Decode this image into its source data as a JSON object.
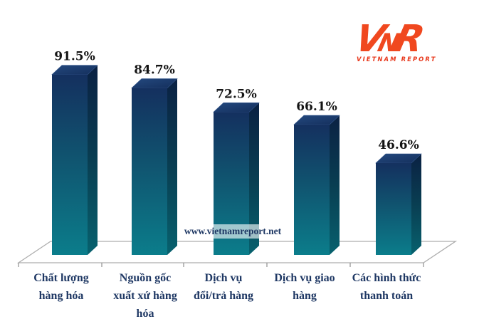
{
  "site": {
    "watermark": "www.vietnamreport.net"
  },
  "logo": {
    "letters": [
      "V",
      "N",
      "R"
    ],
    "subtitle": "VIETNAM REPORT",
    "color": "#F0481F"
  },
  "chart_data": {
    "type": "bar",
    "style": "3d-column",
    "title": "",
    "xlabel": "",
    "ylabel": "",
    "ylim": [
      0,
      100
    ],
    "grid": false,
    "legend": false,
    "categories": [
      "Chất lượng\nhàng hóa",
      "Nguồn gốc\nxuất xứ hàng\nhóa",
      "Dịch vụ\nđổi/trả hàng",
      "Dịch vụ giao\nhàng",
      "Các hình thức\nthanh toán"
    ],
    "values": [
      91.5,
      84.7,
      72.5,
      66.1,
      46.6
    ],
    "value_labels": [
      "91.5%",
      "84.7%",
      "72.5%",
      "66.1%",
      "46.6%"
    ],
    "colors": {
      "bar_front_top": "#14305F",
      "bar_front_bottom": "#0B7D8B",
      "bar_side_top": "#0A2143",
      "bar_side_bottom": "#07616E",
      "bar_top_face_light": "#1E4076",
      "bar_top_face_dark": "#142F5C",
      "floor_line": "#ADADAD",
      "category_text": "#1F3864",
      "value_text": "#141414"
    }
  }
}
